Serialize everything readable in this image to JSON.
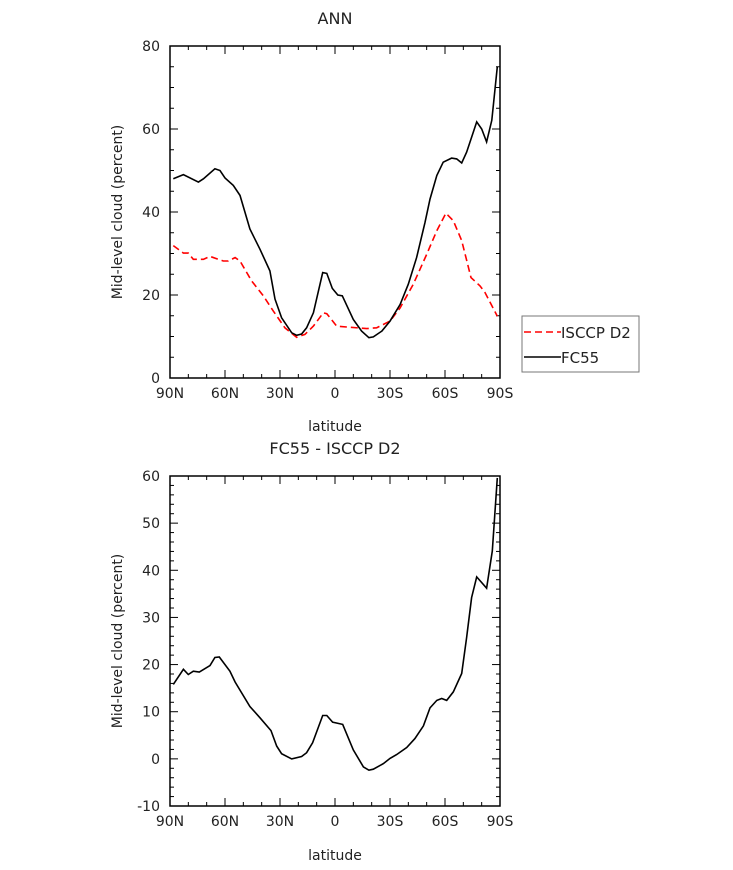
{
  "chart_data": [
    {
      "type": "line",
      "title": "ANN",
      "xlabel": "latitude",
      "ylabel": "Mid-level cloud (percent)",
      "xlim": [
        90,
        -90
      ],
      "ylim": [
        0,
        80
      ],
      "x_ticks": [
        90,
        60,
        30,
        0,
        -30,
        -60,
        -90
      ],
      "x_tick_labels": [
        "90N",
        "60N",
        "30N",
        "0",
        "30S",
        "60S",
        "90S"
      ],
      "y_ticks": [
        0,
        20,
        40,
        60,
        80
      ],
      "y_tick_labels": [
        "0",
        "20",
        "40",
        "60",
        "80"
      ],
      "y_minor_step": 5,
      "grid": false,
      "legend": {
        "placement": "right-outside-bottom",
        "entries": [
          "ISCCP D2",
          "FC55"
        ]
      },
      "series": [
        {
          "name": "ISCCP D2",
          "color": "#ff0000",
          "dash": true,
          "points": [
            [
              88.2,
              31.9
            ],
            [
              82.7,
              30.1
            ],
            [
              80,
              30.1
            ],
            [
              77.3,
              28.6
            ],
            [
              71.8,
              28.6
            ],
            [
              68.2,
              29.3
            ],
            [
              60.9,
              28.2
            ],
            [
              58.2,
              28.2
            ],
            [
              54.5,
              29.0
            ],
            [
              51.8,
              28.2
            ],
            [
              45.5,
              23.4
            ],
            [
              39.1,
              19.8
            ],
            [
              33.6,
              16.1
            ],
            [
              27.3,
              12.1
            ],
            [
              20.9,
              9.8
            ],
            [
              16.4,
              10.5
            ],
            [
              11.8,
              12.5
            ],
            [
              6.4,
              15.7
            ],
            [
              4.5,
              15.5
            ],
            [
              -0.9,
              12.5
            ],
            [
              -6.4,
              12.3
            ],
            [
              -17.3,
              11.9
            ],
            [
              -22.7,
              12.1
            ],
            [
              -30,
              13.7
            ],
            [
              -35.5,
              16.9
            ],
            [
              -42.7,
              22.6
            ],
            [
              -50,
              29.8
            ],
            [
              -55.5,
              35.5
            ],
            [
              -60.5,
              39.7
            ],
            [
              -64.5,
              37.9
            ],
            [
              -69.1,
              33.1
            ],
            [
              -74.2,
              24.2
            ],
            [
              -79.1,
              22.2
            ],
            [
              -81.8,
              20.6
            ],
            [
              -88.5,
              14.9
            ]
          ]
        },
        {
          "name": "FC55",
          "color": "#000000",
          "dash": false,
          "points": [
            [
              88.2,
              48.0
            ],
            [
              82.7,
              49.0
            ],
            [
              74.5,
              47.2
            ],
            [
              71.8,
              48.0
            ],
            [
              65.5,
              50.4
            ],
            [
              62.7,
              50.0
            ],
            [
              60,
              48.2
            ],
            [
              55.5,
              46.4
            ],
            [
              51.8,
              44.0
            ],
            [
              46.4,
              35.9
            ],
            [
              40.9,
              31.0
            ],
            [
              35.5,
              25.8
            ],
            [
              32.7,
              19.0
            ],
            [
              29.1,
              14.5
            ],
            [
              23.6,
              10.9
            ],
            [
              20.9,
              10.3
            ],
            [
              18.2,
              10.6
            ],
            [
              15.5,
              12.1
            ],
            [
              11.8,
              15.7
            ],
            [
              6.7,
              25.4
            ],
            [
              4.5,
              25.2
            ],
            [
              1.5,
              21.6
            ],
            [
              -1.5,
              20.0
            ],
            [
              -4,
              19.8
            ],
            [
              -10,
              14.1
            ],
            [
              -14.5,
              11.3
            ],
            [
              -18.5,
              9.7
            ],
            [
              -20.9,
              9.9
            ],
            [
              -25.5,
              11.3
            ],
            [
              -30,
              13.7
            ],
            [
              -35.5,
              17.7
            ],
            [
              -40,
              22.6
            ],
            [
              -44.5,
              29.0
            ],
            [
              -49.1,
              37.5
            ],
            [
              -51.8,
              43.1
            ],
            [
              -55.5,
              48.8
            ],
            [
              -59,
              52.0
            ],
            [
              -63.6,
              53.0
            ],
            [
              -66.4,
              52.8
            ],
            [
              -69.1,
              51.8
            ],
            [
              -71.8,
              54.4
            ],
            [
              -74.5,
              58.0
            ],
            [
              -77.3,
              61.7
            ],
            [
              -80,
              60.0
            ],
            [
              -82.7,
              56.9
            ],
            [
              -85.5,
              62.1
            ],
            [
              -88.5,
              75.0
            ]
          ]
        }
      ]
    },
    {
      "type": "line",
      "title": "FC55 - ISCCP D2",
      "xlabel": "latitude",
      "ylabel": "Mid-level cloud (percent)",
      "xlim": [
        90,
        -90
      ],
      "ylim": [
        -10,
        60
      ],
      "x_ticks": [
        90,
        60,
        30,
        0,
        -30,
        -60,
        -90
      ],
      "x_tick_labels": [
        "90N",
        "60N",
        "30N",
        "0",
        "30S",
        "60S",
        "90S"
      ],
      "y_ticks": [
        -10,
        0,
        10,
        20,
        30,
        40,
        50,
        60
      ],
      "y_tick_labels": [
        "-10",
        "0",
        "10",
        "20",
        "30",
        "40",
        "50",
        "60"
      ],
      "y_minor_step": 2,
      "grid": false,
      "series": [
        {
          "name": "FC55 - ISCCP D2",
          "color": "#000000",
          "dash": false,
          "points": [
            [
              88.2,
              15.8
            ],
            [
              82.7,
              19.0
            ],
            [
              80,
              17.9
            ],
            [
              77.3,
              18.6
            ],
            [
              74,
              18.4
            ],
            [
              68.2,
              19.8
            ],
            [
              65.5,
              21.5
            ],
            [
              63.1,
              21.6
            ],
            [
              57.3,
              18.6
            ],
            [
              54.5,
              16.3
            ],
            [
              46.4,
              11.1
            ],
            [
              40.9,
              8.7
            ],
            [
              34.9,
              6.0
            ],
            [
              31.8,
              2.7
            ],
            [
              29.1,
              1.1
            ],
            [
              23.6,
              0.0
            ],
            [
              18.2,
              0.5
            ],
            [
              15.5,
              1.3
            ],
            [
              12.2,
              3.4
            ],
            [
              6.7,
              9.2
            ],
            [
              4.5,
              9.2
            ],
            [
              1.3,
              7.8
            ],
            [
              -4.2,
              7.3
            ],
            [
              -10,
              1.9
            ],
            [
              -15.5,
              -1.7
            ],
            [
              -18.5,
              -2.4
            ],
            [
              -20.9,
              -2.2
            ],
            [
              -26.4,
              -1.0
            ],
            [
              -30,
              0.1
            ],
            [
              -33.6,
              0.9
            ],
            [
              -39.1,
              2.4
            ],
            [
              -43.6,
              4.3
            ],
            [
              -48.2,
              7.0
            ],
            [
              -51.8,
              10.8
            ],
            [
              -55.5,
              12.4
            ],
            [
              -58.2,
              12.8
            ],
            [
              -60.9,
              12.4
            ],
            [
              -64.5,
              14.2
            ],
            [
              -69.1,
              18.1
            ],
            [
              -71.8,
              25.7
            ],
            [
              -74.5,
              34.2
            ],
            [
              -77.3,
              38.6
            ],
            [
              -82.7,
              36.2
            ],
            [
              -85.8,
              44.1
            ],
            [
              -88.5,
              59.6
            ]
          ]
        }
      ]
    }
  ]
}
